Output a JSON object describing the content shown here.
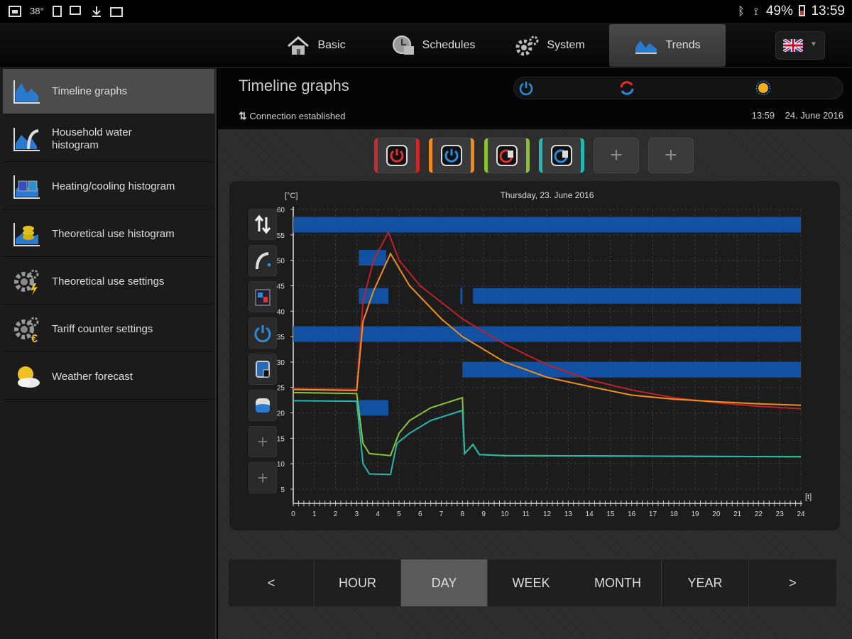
{
  "statusbar": {
    "temperature": "38°",
    "battery": "49%",
    "time": "13:59"
  },
  "nav": {
    "tabs": [
      {
        "label": "Basic",
        "icon": "home-icon"
      },
      {
        "label": "Schedules",
        "icon": "clock-icon"
      },
      {
        "label": "System",
        "icon": "gears-icon"
      },
      {
        "label": "Trends",
        "icon": "trends-icon",
        "active": true
      }
    ],
    "language_flag": "uk-flag-icon"
  },
  "sidebar": {
    "items": [
      {
        "label": "Timeline graphs",
        "icon": "timeline-graph-icon",
        "active": true
      },
      {
        "label": "Household water histogram",
        "icon": "water-histogram-icon"
      },
      {
        "label": "Heating/cooling histogram",
        "icon": "heating-histogram-icon"
      },
      {
        "label": "Theoretical use histogram",
        "icon": "coins-histogram-icon"
      },
      {
        "label": "Theoretical use settings",
        "icon": "gear-bolt-icon"
      },
      {
        "label": "Tariff counter settings",
        "icon": "gear-euro-icon"
      },
      {
        "label": "Weather forecast",
        "icon": "sun-cloud-icon"
      }
    ]
  },
  "main": {
    "title": "Timeline graphs",
    "connection": "Connection established",
    "time": "13:59",
    "date": "24. June 2016"
  },
  "devices": [
    {
      "color": "#d0282a",
      "icon": "power-red-icon"
    },
    {
      "color": "#f08a1c",
      "icon": "power-blue-icon"
    },
    {
      "color": "#86c232",
      "icon": "circuit-red-icon"
    },
    {
      "color": "#25b8b0",
      "icon": "circuit-blue-icon"
    },
    {
      "color": "",
      "icon": "plus-icon"
    },
    {
      "color": "",
      "icon": "plus-icon"
    }
  ],
  "chart_data": {
    "type": "line",
    "title": "Thursday, 23. June 2016",
    "ylabel": "[°C]",
    "xlabel": "[t]",
    "ylim": [
      5,
      60
    ],
    "xlim": [
      0,
      24
    ],
    "y_ticks": [
      5,
      10,
      15,
      20,
      25,
      30,
      35,
      40,
      45,
      50,
      55,
      60
    ],
    "x_ticks": [
      0,
      1,
      2,
      3,
      4,
      5,
      6,
      7,
      8,
      9,
      10,
      11,
      12,
      13,
      14,
      15,
      16,
      17,
      18,
      19,
      20,
      21,
      22,
      23,
      24
    ],
    "grid": true,
    "series": [
      {
        "color": "#c0202a",
        "points": [
          [
            0,
            24.8
          ],
          [
            3,
            24.6
          ],
          [
            3.3,
            42
          ],
          [
            3.8,
            50
          ],
          [
            4.5,
            55.5
          ],
          [
            5,
            50
          ],
          [
            6,
            45
          ],
          [
            8,
            38.5
          ],
          [
            10,
            33.5
          ],
          [
            12,
            29.5
          ],
          [
            14,
            26.5
          ],
          [
            16,
            24.5
          ],
          [
            18,
            23
          ],
          [
            20,
            22
          ],
          [
            22,
            21.3
          ],
          [
            24,
            20.8
          ]
        ]
      },
      {
        "color": "#f0901c",
        "points": [
          [
            0,
            24.6
          ],
          [
            3,
            24.4
          ],
          [
            3.3,
            38
          ],
          [
            3.8,
            44
          ],
          [
            4.6,
            51.3
          ],
          [
            5.5,
            45
          ],
          [
            7,
            38.5
          ],
          [
            8,
            35
          ],
          [
            10,
            30
          ],
          [
            12,
            27
          ],
          [
            14,
            25.2
          ],
          [
            16,
            23.5
          ],
          [
            18,
            22.7
          ],
          [
            20,
            22.2
          ],
          [
            22,
            21.8
          ],
          [
            24,
            21.5
          ]
        ]
      },
      {
        "color": "#8cc43a",
        "points": [
          [
            0,
            24
          ],
          [
            3,
            23.8
          ],
          [
            3.3,
            14
          ],
          [
            3.6,
            12
          ],
          [
            4.6,
            11.6
          ],
          [
            5,
            16
          ],
          [
            5.5,
            18.5
          ],
          [
            6.5,
            21
          ],
          [
            8,
            23
          ],
          [
            8.1,
            12
          ],
          [
            8.5,
            13.8
          ],
          [
            8.8,
            11.8
          ],
          [
            10,
            11.6
          ],
          [
            16,
            11.5
          ],
          [
            24,
            11.4
          ]
        ]
      },
      {
        "color": "#25b8b0",
        "points": [
          [
            0,
            22.4
          ],
          [
            3,
            22.3
          ],
          [
            3.3,
            10
          ],
          [
            3.6,
            8
          ],
          [
            4.6,
            7.9
          ],
          [
            4.9,
            14
          ],
          [
            5.5,
            16
          ],
          [
            6.5,
            18.5
          ],
          [
            8,
            20.5
          ],
          [
            8.1,
            12
          ],
          [
            8.5,
            13.8
          ],
          [
            8.8,
            11.8
          ],
          [
            10,
            11.6
          ],
          [
            16,
            11.5
          ],
          [
            24,
            11.4
          ]
        ]
      }
    ],
    "state_bars": [
      {
        "row": "pump",
        "color": "#1257b0",
        "from": 0,
        "to": 24
      },
      {
        "row": "dhw",
        "color": "#1257b0",
        "from": 3.1,
        "to": 4.4
      },
      {
        "row": "circuit",
        "color": "#1257b0",
        "from": 3.1,
        "to": 4.5
      },
      {
        "row": "circuit",
        "color": "#1257b0",
        "from": 7.9,
        "to": 8.0
      },
      {
        "row": "circuit",
        "color": "#1257b0",
        "from": 8.5,
        "to": 24
      },
      {
        "row": "power",
        "color": "#1257b0",
        "from": 0,
        "to": 24
      },
      {
        "row": "circuit2",
        "color": "#1257b0",
        "from": 8.0,
        "to": 24
      },
      {
        "row": "tank",
        "color": "#1257b0",
        "from": 3.1,
        "to": 4.5
      }
    ]
  },
  "left_controls": [
    "arrows-updown-icon",
    "faucet-icon",
    "circuit-icon",
    "power-icon",
    "heater-icon",
    "tank-icon",
    "plus-icon",
    "plus-icon"
  ],
  "period": {
    "prev": "<",
    "buttons": [
      "HOUR",
      "DAY",
      "WEEK",
      "MONTH",
      "YEAR"
    ],
    "active": "DAY",
    "next": ">"
  }
}
